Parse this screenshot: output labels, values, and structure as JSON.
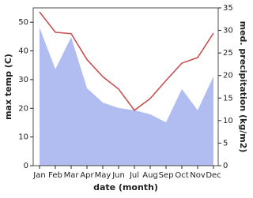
{
  "chart_data": {
    "type": "line_area",
    "xlabel": "date (month)",
    "ylabel": "max temp (C)",
    "y2label": "med. precipitation (kg/m2)",
    "categories": [
      "Jan",
      "Feb",
      "Mar",
      "Apr",
      "May",
      "Jun",
      "Jul",
      "Aug",
      "Sep",
      "Oct",
      "Nov",
      "Dec"
    ],
    "series": [
      {
        "name": "max temp",
        "color": "#c9504f",
        "kind": "line",
        "axis": "y",
        "values": [
          53.6,
          46.5,
          46,
          37,
          31,
          26.7,
          19.3,
          23.4,
          29.7,
          35.7,
          37.7,
          46.2
        ]
      },
      {
        "name": "precipitation",
        "color": "#b1bcf1",
        "kind": "area",
        "axis": "y2",
        "values": [
          30.6,
          21.4,
          28.5,
          17.2,
          14,
          12.8,
          12.3,
          11.4,
          9.6,
          17,
          12.3,
          19.8
        ]
      }
    ],
    "ylim": [
      0,
      55
    ],
    "yticks": [
      0,
      10,
      20,
      30,
      40,
      50
    ],
    "y2lim": [
      0,
      35
    ],
    "y2ticks": [
      0,
      5,
      10,
      15,
      20,
      25,
      30,
      35
    ]
  }
}
